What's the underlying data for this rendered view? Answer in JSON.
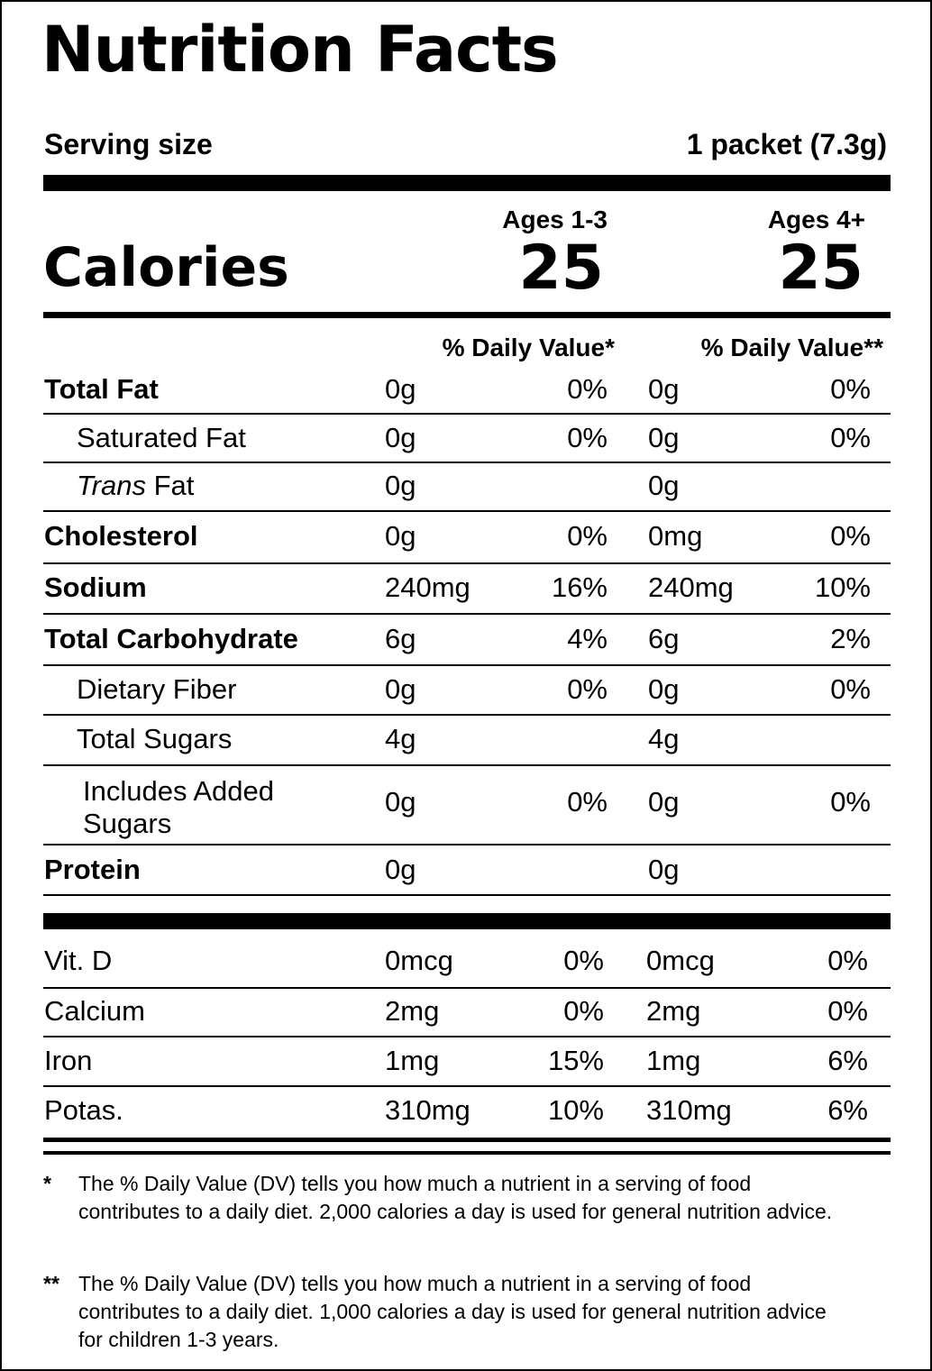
{
  "title": "Nutrition Facts",
  "serving": {
    "label": "Serving size",
    "value": "1 packet (7.3g)"
  },
  "calories": {
    "label": "Calories",
    "groups": [
      {
        "header": "Ages 1-3",
        "value": "25"
      },
      {
        "header": "Ages 4+",
        "value": "25"
      }
    ]
  },
  "dv_headers": [
    "% Daily Value*",
    "% Daily Value**"
  ],
  "nutrients": [
    {
      "name": "Total Fat",
      "amt1": "0g",
      "dv1": "0%",
      "amt2": "0g",
      "dv2": "0%"
    },
    {
      "name": "Saturated Fat",
      "amt1": "0g",
      "dv1": "0%",
      "amt2": "0g",
      "dv2": "0%"
    },
    {
      "name_italic": "Trans",
      "name_rest": " Fat",
      "amt1": "0g",
      "dv1": "",
      "amt2": "0g",
      "dv2": ""
    },
    {
      "name": "Cholesterol",
      "amt1": "0g",
      "dv1": "0%",
      "amt2": "0mg",
      "dv2": "0%"
    },
    {
      "name": "Sodium",
      "amt1": "240mg",
      "dv1": "16%",
      "amt2": "240mg",
      "dv2": "10%"
    },
    {
      "name": "Total Carbohydrate",
      "amt1": "6g",
      "dv1": "4%",
      "amt2": "6g",
      "dv2": "2%"
    },
    {
      "name": "Dietary Fiber",
      "amt1": "0g",
      "dv1": "0%",
      "amt2": "0g",
      "dv2": "0%"
    },
    {
      "name": "Total Sugars",
      "amt1": "4g",
      "dv1": "",
      "amt2": "4g",
      "dv2": ""
    },
    {
      "name": "Includes Added Sugars",
      "amt1": "0g",
      "dv1": "0%",
      "amt2": "0g",
      "dv2": "0%"
    },
    {
      "name": "Protein",
      "amt1": "0g",
      "dv1": "",
      "amt2": "0g",
      "dv2": ""
    }
  ],
  "vitamins": [
    {
      "name": "Vit. D",
      "amt1": "0mcg",
      "dv1": "0%",
      "amt2": "0mcg",
      "dv2": "0%"
    },
    {
      "name": "Calcium",
      "amt1": "2mg",
      "dv1": "0%",
      "amt2": "2mg",
      "dv2": "0%"
    },
    {
      "name": "Iron",
      "amt1": "1mg",
      "dv1": "15%",
      "amt2": "1mg",
      "dv2": "6%"
    },
    {
      "name": "Potas.",
      "amt1": "310mg",
      "dv1": "10%",
      "amt2": "310mg",
      "dv2": "6%"
    }
  ],
  "footnotes": [
    {
      "mark": "*",
      "text": "The % Daily Value (DV) tells you how much a nutrient in a serving of food contributes to a daily diet. 2,000 calories a day is used for general nutrition advice."
    },
    {
      "mark": "**",
      "text": "The % Daily Value (DV) tells you how much a nutrient in a serving of food contributes to a daily diet. 1,000 calories a day is used for general nutrition advice for children 1-3 years."
    }
  ]
}
